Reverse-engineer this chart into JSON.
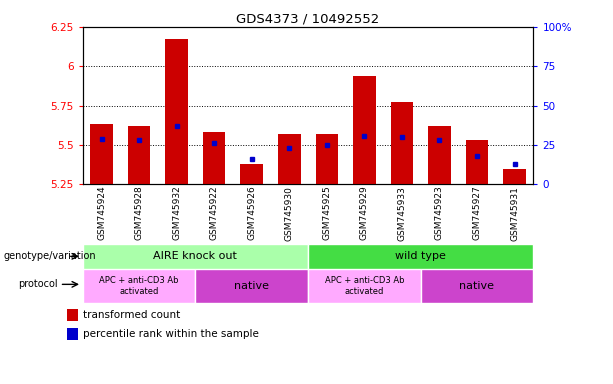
{
  "title": "GDS4373 / 10492552",
  "samples": [
    "GSM745924",
    "GSM745928",
    "GSM745932",
    "GSM745922",
    "GSM745926",
    "GSM745930",
    "GSM745925",
    "GSM745929",
    "GSM745933",
    "GSM745923",
    "GSM745927",
    "GSM745931"
  ],
  "red_top": [
    5.63,
    5.62,
    6.17,
    5.58,
    5.38,
    5.57,
    5.57,
    5.94,
    5.77,
    5.62,
    5.53,
    5.35
  ],
  "red_bottom": [
    5.25,
    5.25,
    5.25,
    5.25,
    5.25,
    5.25,
    5.25,
    5.25,
    5.25,
    5.25,
    5.25,
    5.25
  ],
  "blue_values": [
    5.54,
    5.53,
    5.62,
    5.51,
    5.41,
    5.48,
    5.5,
    5.56,
    5.55,
    5.53,
    5.43,
    5.38
  ],
  "ylim_left": [
    5.25,
    6.25
  ],
  "ylim_right": [
    0,
    100
  ],
  "yticks_left": [
    5.25,
    5.5,
    5.75,
    6.0,
    6.25
  ],
  "ytick_labels_left": [
    "5.25",
    "5.5",
    "5.75",
    "6",
    "6.25"
  ],
  "yticks_right": [
    0,
    25,
    50,
    75,
    100
  ],
  "ytick_labels_right": [
    "0",
    "25",
    "50",
    "75",
    "100%"
  ],
  "red_color": "#cc0000",
  "blue_color": "#0000cc",
  "gridlines_at": [
    5.5,
    5.75,
    6.0
  ],
  "group1_label": "AIRE knock out",
  "group2_label": "wild type",
  "group1_color": "#aaffaa",
  "group2_color": "#44dd44",
  "protocol1_label": "APC + anti-CD3 Ab\nactivated",
  "protocol2_label": "native",
  "protocol_light": "#ffaaff",
  "protocol_dark": "#cc44cc",
  "genotype_label": "genotype/variation",
  "protocol_label": "protocol",
  "legend_red": "transformed count",
  "legend_blue": "percentile rank within the sample",
  "xtick_bg": "#cccccc"
}
